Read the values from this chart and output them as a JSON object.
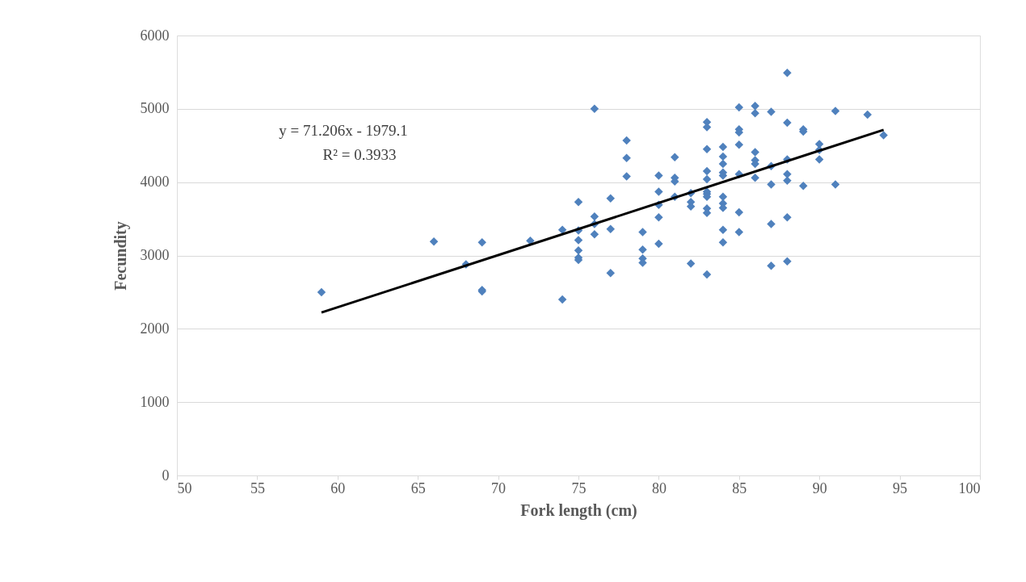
{
  "chart_data": {
    "type": "scatter",
    "xlabel": "Fork length (cm)",
    "ylabel": "Fecundity",
    "xlim": [
      50,
      100
    ],
    "xticks": [
      50,
      55,
      60,
      65,
      70,
      75,
      80,
      85,
      90,
      95,
      100
    ],
    "ylim": [
      0,
      6000
    ],
    "yticks": [
      0,
      1000,
      2000,
      3000,
      4000,
      5000,
      6000
    ],
    "grid": "y",
    "marker": "diamond",
    "annotations": [
      "y = 71.206x - 1979.1",
      "R² = 0.3933"
    ],
    "series": [
      {
        "color": "#4f81bd",
        "x": [
          59,
          66,
          68,
          69,
          69,
          69,
          72,
          74,
          74,
          75,
          75,
          75,
          75,
          75,
          75,
          76,
          76,
          76,
          76,
          77,
          77,
          77,
          78,
          78,
          78,
          79,
          79,
          79,
          79,
          80,
          80,
          80,
          80,
          80,
          81,
          81,
          81,
          81,
          82,
          82,
          82,
          82,
          83,
          83,
          83,
          83,
          83,
          83,
          83,
          83,
          83,
          83,
          83,
          84,
          84,
          84,
          84,
          84,
          84,
          84,
          84,
          84,
          84,
          85,
          85,
          85,
          85,
          85,
          85,
          85,
          86,
          86,
          86,
          86,
          86,
          86,
          87,
          87,
          87,
          87,
          87,
          88,
          88,
          88,
          88,
          88,
          88,
          88,
          89,
          89,
          89,
          90,
          90,
          90,
          91,
          91,
          93,
          94
        ],
        "values": [
          2500,
          3190,
          2880,
          3180,
          2530,
          2510,
          3200,
          3350,
          2400,
          3730,
          3340,
          3210,
          3070,
          2970,
          2940,
          5000,
          3530,
          3430,
          3290,
          3780,
          3360,
          2760,
          4570,
          4330,
          4080,
          3320,
          3080,
          2960,
          2900,
          4090,
          3870,
          3690,
          3520,
          3160,
          4340,
          4060,
          4010,
          3800,
          3850,
          3730,
          3670,
          2890,
          4820,
          4750,
          4450,
          4150,
          4040,
          3870,
          3840,
          3800,
          3640,
          3580,
          2740,
          4480,
          4350,
          4250,
          4130,
          4090,
          3800,
          3710,
          3650,
          3350,
          3180,
          5020,
          4720,
          4680,
          4510,
          4110,
          3590,
          3320,
          5040,
          4940,
          4410,
          4300,
          4250,
          4060,
          4960,
          4220,
          3970,
          3430,
          2860,
          5490,
          4810,
          4310,
          4110,
          4020,
          3520,
          2920,
          4720,
          4690,
          3950,
          4520,
          4440,
          4310,
          4970,
          3970,
          4920,
          4640
        ]
      },
      {
        "type": "line",
        "marker": "none",
        "line_style": "solid",
        "color": "#000000",
        "x": [
          59,
          94
        ],
        "values": [
          2222,
          4714
        ]
      }
    ]
  }
}
